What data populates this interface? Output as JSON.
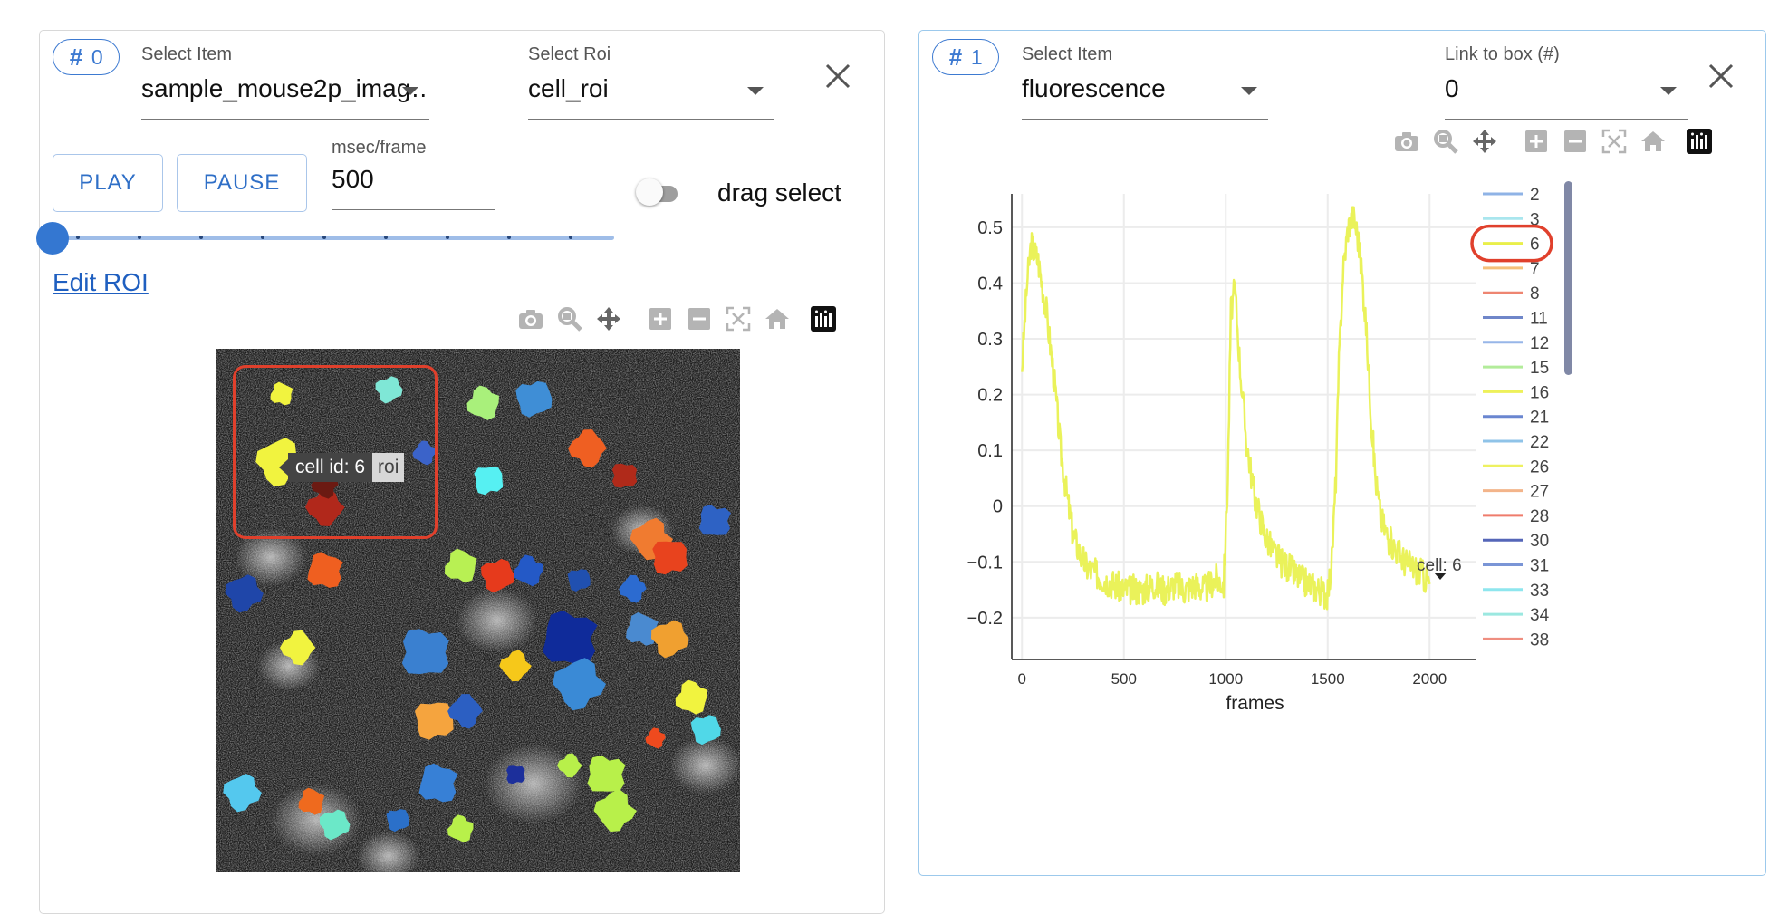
{
  "box0": {
    "id_label": "0",
    "select_item_label": "Select Item",
    "select_item_value": "sample_mouse2p_imag…",
    "select_roi_label": "Select Roi",
    "select_roi_value": "cell_roi",
    "play_label": "PLAY",
    "pause_label": "PAUSE",
    "msec_label": "msec/frame",
    "msec_value": "500",
    "drag_select_label": "drag select",
    "drag_select_on": false,
    "slider_progress": 0,
    "edit_roi_label": "Edit ROI",
    "tooltip_main": "cell id: 6",
    "tooltip_side": "roi",
    "icons": [
      "camera-icon",
      "zoom-icon",
      "pan-icon",
      "zoom-in-icon",
      "zoom-out-icon",
      "autoscale-icon",
      "home-icon",
      "plotly-logo-icon"
    ]
  },
  "box1": {
    "id_label": "1",
    "select_item_label": "Select Item",
    "select_item_value": "fluorescence",
    "link_label": "Link to box (#)",
    "link_value": "0",
    "hover_label": "cell: 6",
    "icons": [
      "camera-icon",
      "zoom-icon",
      "pan-icon",
      "zoom-in-icon",
      "zoom-out-icon",
      "autoscale-icon",
      "home-icon",
      "plotly-logo-icon"
    ]
  },
  "chart_data": {
    "type": "line",
    "title": "",
    "xlabel": "frames",
    "ylabel": "",
    "xlim": [
      -50,
      2230
    ],
    "ylim": [
      -0.275,
      0.56
    ],
    "xticks": [
      0,
      500,
      1000,
      1500,
      2000
    ],
    "yticks": [
      0.5,
      0.4,
      0.3,
      0.2,
      0.1,
      0,
      -0.1,
      -0.2
    ],
    "ytick_labels": [
      "0.5",
      "0.4",
      "0.3",
      "0.2",
      "0.1",
      "0",
      "−0.1",
      "−0.2"
    ],
    "grid": true,
    "legend_position": "right",
    "legend": [
      {
        "label": "2",
        "color": "#8fb3e6"
      },
      {
        "label": "3",
        "color": "#a9e6ee"
      },
      {
        "label": "6",
        "color": "#e9ef4a"
      },
      {
        "label": "7",
        "color": "#f5c07a"
      },
      {
        "label": "8",
        "color": "#ee8571"
      },
      {
        "label": "11",
        "color": "#6f86c9"
      },
      {
        "label": "12",
        "color": "#97b6e8"
      },
      {
        "label": "15",
        "color": "#b2ec9a"
      },
      {
        "label": "16",
        "color": "#eef15a"
      },
      {
        "label": "21",
        "color": "#6a86d0"
      },
      {
        "label": "22",
        "color": "#8fc3e8"
      },
      {
        "label": "26",
        "color": "#eef160"
      },
      {
        "label": "27",
        "color": "#f3b48a"
      },
      {
        "label": "28",
        "color": "#ef7c6c"
      },
      {
        "label": "30",
        "color": "#5566b8"
      },
      {
        "label": "31",
        "color": "#7a95d6"
      },
      {
        "label": "33",
        "color": "#8ee6ee"
      },
      {
        "label": "34",
        "color": "#9be8e0"
      },
      {
        "label": "38",
        "color": "#ef8e80"
      }
    ],
    "series": [
      {
        "name": "6",
        "color": "#eaf25a",
        "x": [
          0,
          25,
          45,
          80,
          120,
          160,
          190,
          220,
          250,
          270,
          290,
          320,
          360,
          400,
          450,
          500,
          550,
          600,
          650,
          700,
          750,
          800,
          850,
          900,
          950,
          990,
          1010,
          1025,
          1045,
          1070,
          1100,
          1140,
          1190,
          1230,
          1270,
          1310,
          1360,
          1410,
          1460,
          1500,
          1520,
          1540,
          1555,
          1575,
          1600,
          1625,
          1645,
          1665,
          1685,
          1700,
          1715,
          1735,
          1760,
          1800,
          1840,
          1880,
          1920,
          1960,
          2000
        ],
        "y": [
          0.25,
          0.4,
          0.47,
          0.44,
          0.35,
          0.22,
          0.1,
          0.02,
          -0.05,
          -0.07,
          -0.09,
          -0.11,
          -0.12,
          -0.13,
          -0.14,
          -0.15,
          -0.15,
          -0.15,
          -0.14,
          -0.15,
          -0.14,
          -0.15,
          -0.14,
          -0.15,
          -0.13,
          -0.14,
          0.05,
          0.35,
          0.39,
          0.25,
          0.12,
          0.02,
          -0.05,
          -0.08,
          -0.1,
          -0.11,
          -0.13,
          -0.14,
          -0.15,
          -0.16,
          -0.1,
          0.05,
          0.25,
          0.42,
          0.5,
          0.52,
          0.49,
          0.43,
          0.34,
          0.25,
          0.15,
          0.05,
          -0.02,
          -0.06,
          -0.08,
          -0.1,
          -0.11,
          -0.12,
          -0.14
        ]
      }
    ]
  }
}
